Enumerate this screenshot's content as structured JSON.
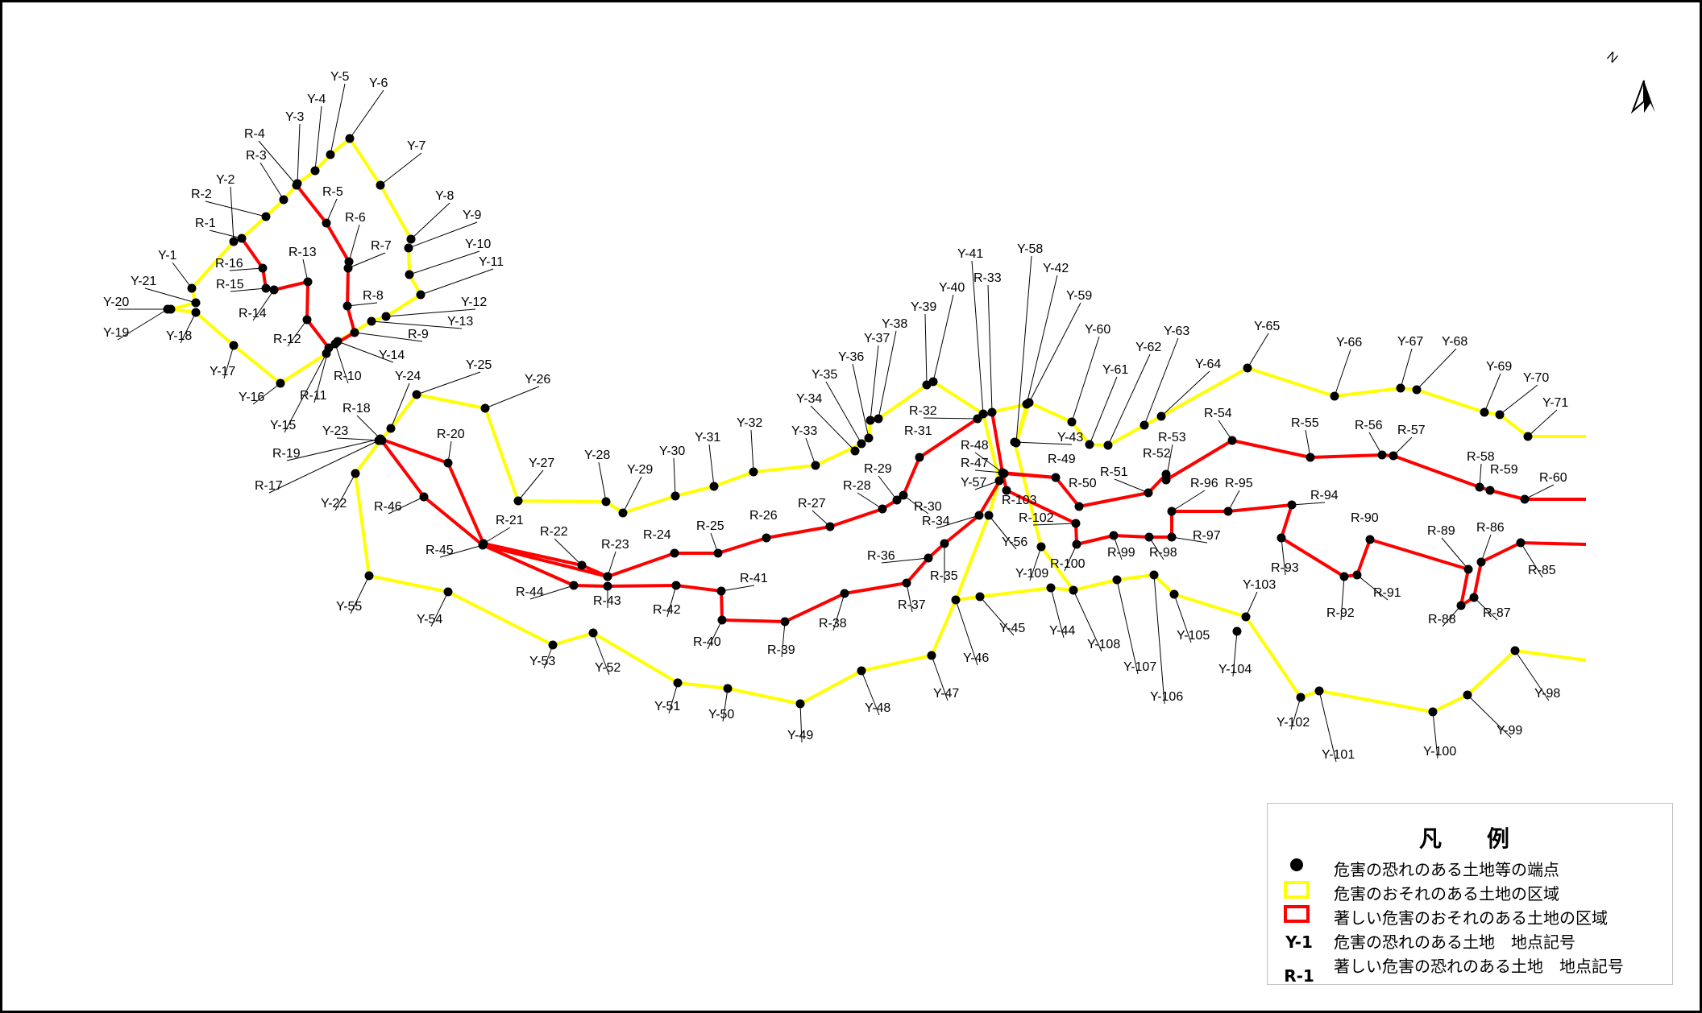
{
  "legend": {
    "title": "凡　例",
    "items": [
      {
        "symbol": "point",
        "text": "危害の恐れのある土地等の端点"
      },
      {
        "symbol": "yellow-box",
        "text": "危害のおそれのある土地の区域"
      },
      {
        "symbol": "red-box",
        "text": "著しい危害のおそれのある土地の区域"
      },
      {
        "symbol": "code",
        "code": "Y-1",
        "text": "危害の恐れのある土地　地点記号"
      },
      {
        "symbol": "code",
        "code": "R-1",
        "text": "著しい危害の恐れのある土地　地点記号"
      }
    ]
  },
  "colors": {
    "yellow_zone": "#ffff00",
    "red_zone": "#ff0000",
    "point": "#000000"
  },
  "north_arrow": {
    "label": "N",
    "icon": "north-arrow-icon"
  },
  "yellow_points": [
    "Y-1",
    "Y-2",
    "Y-3",
    "Y-4",
    "Y-5",
    "Y-6",
    "Y-7",
    "Y-8",
    "Y-9",
    "Y-10",
    "Y-11",
    "Y-12",
    "Y-13",
    "Y-14",
    "Y-15",
    "Y-16",
    "Y-17",
    "Y-18",
    "Y-19",
    "Y-20",
    "Y-21",
    "Y-22",
    "Y-23",
    "Y-24",
    "Y-25",
    "Y-26",
    "Y-27",
    "Y-28",
    "Y-29",
    "Y-30",
    "Y-31",
    "Y-32",
    "Y-33",
    "Y-34",
    "Y-35",
    "Y-36",
    "Y-37",
    "Y-38",
    "Y-39",
    "Y-40",
    "Y-41",
    "Y-42",
    "Y-43",
    "Y-44",
    "Y-45",
    "Y-46",
    "Y-47",
    "Y-48",
    "Y-49",
    "Y-50",
    "Y-51",
    "Y-52",
    "Y-53",
    "Y-54",
    "Y-55",
    "Y-56",
    "Y-57",
    "Y-58",
    "Y-59",
    "Y-60",
    "Y-61",
    "Y-62",
    "Y-63",
    "Y-64",
    "Y-65",
    "Y-66",
    "Y-67",
    "Y-68",
    "Y-69",
    "Y-70",
    "Y-71",
    "Y-98",
    "Y-99",
    "Y-100",
    "Y-101",
    "Y-102",
    "Y-103",
    "Y-104",
    "Y-105",
    "Y-106",
    "Y-107",
    "Y-108",
    "Y-109"
  ],
  "red_points": [
    "R-1",
    "R-2",
    "R-3",
    "R-4",
    "R-5",
    "R-6",
    "R-7",
    "R-8",
    "R-9",
    "R-10",
    "R-11",
    "R-12",
    "R-13",
    "R-14",
    "R-15",
    "R-16",
    "R-17",
    "R-18",
    "R-19",
    "R-20",
    "R-21",
    "R-22",
    "R-23",
    "R-24",
    "R-25",
    "R-26",
    "R-27",
    "R-28",
    "R-29",
    "R-30",
    "R-31",
    "R-32",
    "R-33",
    "R-34",
    "R-35",
    "R-36",
    "R-37",
    "R-38",
    "R-39",
    "R-40",
    "R-41",
    "R-42",
    "R-43",
    "R-44",
    "R-45",
    "R-46",
    "R-47",
    "R-48",
    "R-49",
    "R-50",
    "R-51",
    "R-52",
    "R-53",
    "R-54",
    "R-55",
    "R-56",
    "R-57",
    "R-58",
    "R-59",
    "R-60",
    "R-85",
    "R-86",
    "R-87",
    "R-88",
    "R-89",
    "R-90",
    "R-91",
    "R-92",
    "R-93",
    "R-94",
    "R-95",
    "R-96",
    "R-97",
    "R-98",
    "R-99",
    "R-100",
    "R-102",
    "R-103"
  ]
}
